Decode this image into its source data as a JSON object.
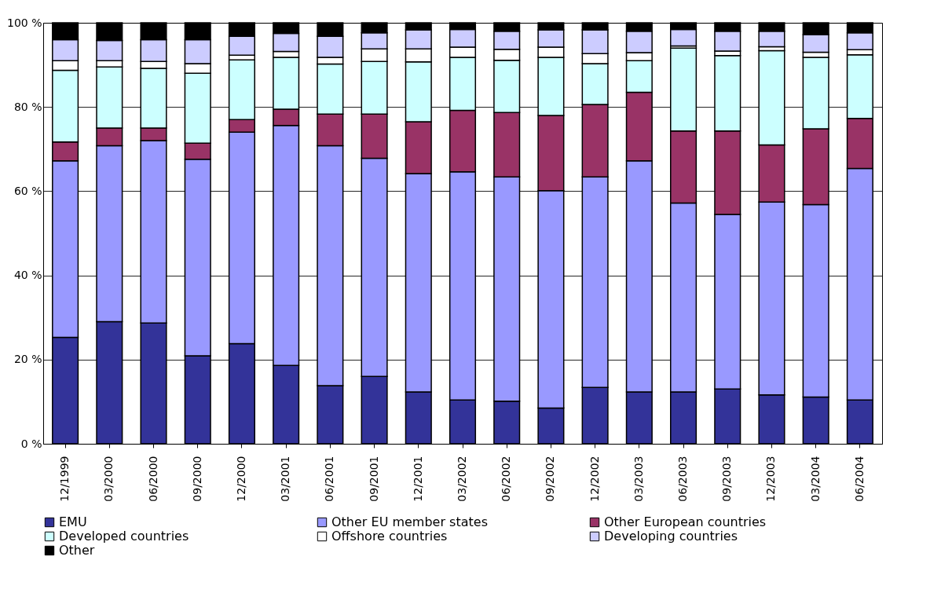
{
  "chart_data": {
    "type": "bar",
    "stacked": true,
    "categories": [
      "12/1999",
      "03/2000",
      "06/2000",
      "09/2000",
      "12/2000",
      "03/2001",
      "06/2001",
      "09/2001",
      "12/2001",
      "03/2002",
      "06/2002",
      "09/2002",
      "12/2002",
      "03/2003",
      "06/2003",
      "09/2003",
      "12/2003",
      "03/2004",
      "06/2004"
    ],
    "series": [
      {
        "name": "EMU",
        "color": "#333399",
        "values": [
          25.3,
          29,
          28.7,
          20.9,
          23.8,
          18.6,
          13.8,
          16,
          12.3,
          10.4,
          10.1,
          8.5,
          13.4,
          12.3,
          12.3,
          13,
          11.6,
          11.1,
          10.4
        ]
      },
      {
        "name": "Other EU member states",
        "color": "#9999ff",
        "values": [
          41.9,
          41.8,
          43.3,
          46.7,
          50.2,
          57,
          57,
          51.8,
          51.9,
          54.2,
          53.3,
          51.6,
          50,
          54.9,
          44.9,
          41.5,
          45.8,
          45.7,
          55
        ]
      },
      {
        "name": "Other European countries",
        "color": "#993366",
        "values": [
          4.5,
          4.2,
          3,
          3.8,
          3,
          3.9,
          7.5,
          10.5,
          12.3,
          14.6,
          15.3,
          17.9,
          17.2,
          16.3,
          17.1,
          19.8,
          13.6,
          18,
          11.9
        ]
      },
      {
        "name": "Developed countries",
        "color": "#ccffff",
        "values": [
          17,
          14.5,
          14.2,
          16.6,
          14.2,
          12.3,
          11.9,
          12.5,
          14.2,
          12.6,
          12.4,
          13.8,
          9.7,
          7.5,
          19.7,
          17.9,
          22.4,
          17,
          15.1
        ]
      },
      {
        "name": "Offshore countries",
        "color": "#ffffff",
        "values": [
          2.3,
          1.5,
          1.6,
          2.3,
          1.1,
          1.4,
          1.6,
          3,
          3.1,
          2.4,
          2.6,
          2.4,
          2.4,
          1.9,
          0.5,
          1.1,
          0.9,
          1.2,
          1.2
        ]
      },
      {
        "name": "Developing countries",
        "color": "#ccccff",
        "values": [
          5,
          4.8,
          5.2,
          5.7,
          4.5,
          4.3,
          5,
          3.8,
          4.5,
          4.2,
          4.3,
          4.1,
          5.6,
          5.1,
          3.9,
          4.7,
          3.7,
          4.2,
          4
        ]
      },
      {
        "name": "Other",
        "color": "#000000",
        "values": [
          4,
          4.2,
          4,
          4,
          3.2,
          2.5,
          3.2,
          2.4,
          1.7,
          1.6,
          2,
          1.7,
          1.7,
          2,
          1.6,
          2,
          2,
          2.8,
          2.4
        ]
      }
    ],
    "ylim": [
      0,
      100
    ],
    "yticks": [
      {
        "value": 0,
        "label": "0 %"
      },
      {
        "value": 20,
        "label": "20 %"
      },
      {
        "value": 40,
        "label": "40 %"
      },
      {
        "value": 60,
        "label": "60 %"
      },
      {
        "value": 80,
        "label": "80 %"
      },
      {
        "value": 100,
        "label": "100 %"
      }
    ],
    "grid": "y",
    "legend": "bottom"
  }
}
